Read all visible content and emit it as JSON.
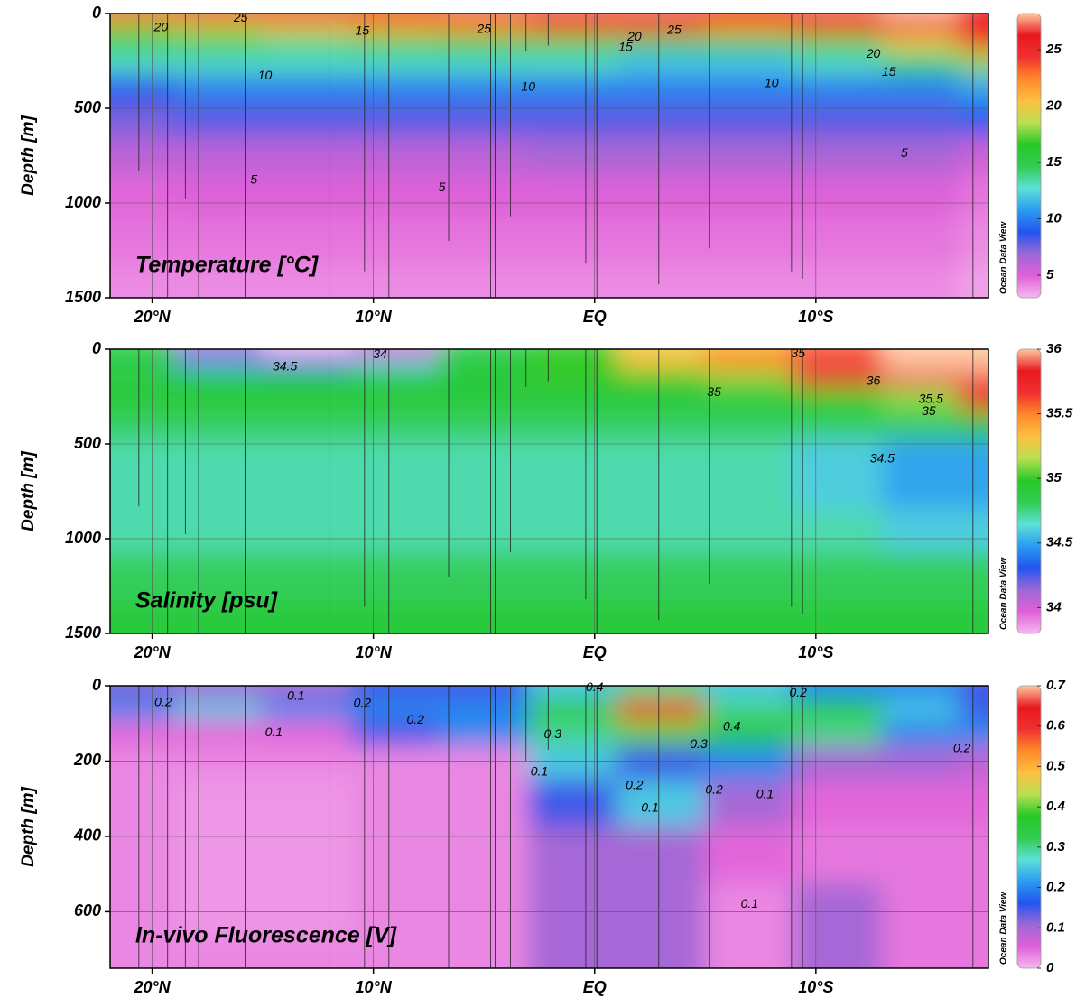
{
  "watermark": "Ocean Data View",
  "stations": [
    {
      "lat": 20.6,
      "depth": 830
    },
    {
      "lat": 19.3,
      "depth": 1500
    },
    {
      "lat": 18.5,
      "depth": 975
    },
    {
      "lat": 17.9,
      "depth": 1500
    },
    {
      "lat": 15.8,
      "depth": 1500
    },
    {
      "lat": 12.0,
      "depth": 1500
    },
    {
      "lat": 10.4,
      "depth": 1360
    },
    {
      "lat": 9.3,
      "depth": 1500
    },
    {
      "lat": 6.6,
      "depth": 1200
    },
    {
      "lat": 4.7,
      "depth": 1500
    },
    {
      "lat": 4.5,
      "depth": 1500
    },
    {
      "lat": 3.8,
      "depth": 1070
    },
    {
      "lat": 3.1,
      "depth": 200
    },
    {
      "lat": 2.1,
      "depth": 170
    },
    {
      "lat": 0.4,
      "depth": 1320
    },
    {
      "lat": -0.1,
      "depth": 1500
    },
    {
      "lat": -2.9,
      "depth": 1430
    },
    {
      "lat": -5.2,
      "depth": 1240
    },
    {
      "lat": -8.9,
      "depth": 1360
    },
    {
      "lat": -9.4,
      "depth": 1400
    },
    {
      "lat": -17.1,
      "depth": 1500
    }
  ],
  "chart_data": [
    {
      "type": "contour",
      "title": "Temperature [°C]",
      "y_label": "Depth [m]",
      "xlim": [
        21.9,
        -17.8
      ],
      "ylim": [
        0,
        1500
      ],
      "xticks": [
        {
          "value": 20,
          "label": "20°N"
        },
        {
          "value": 10,
          "label": "10°N"
        },
        {
          "value": 0,
          "label": "EQ"
        },
        {
          "value": -10,
          "label": "10°S"
        }
      ],
      "yticks": [
        0,
        500,
        1000,
        1500
      ],
      "grid": true,
      "zlim": [
        3,
        28.2
      ],
      "zticks": [
        5,
        10,
        15,
        20,
        25
      ],
      "colormap": [
        "#f6b8ee",
        "#e060d8",
        "#9c68d6",
        "#2255ee",
        "#2a9cf0",
        "#5ee0d8",
        "#30cc50",
        "#28c828",
        "#b8e050",
        "#ffc040",
        "#ff8a28",
        "#f03030",
        "#e81820",
        "#ffc8a0"
      ],
      "x": [
        21,
        17,
        13,
        9,
        5,
        1,
        -3,
        -7,
        -11,
        -15,
        -18
      ],
      "depths": [
        10,
        75,
        150,
        250,
        400,
        550,
        750,
        950,
        1200,
        1450
      ],
      "z": [
        [
          24,
          25,
          25,
          26,
          27,
          27,
          27,
          26,
          27,
          28,
          26
        ],
        [
          18,
          19,
          20,
          21,
          22,
          24,
          24,
          22,
          24,
          26,
          26
        ],
        [
          15,
          15,
          14,
          15,
          16,
          17,
          15,
          15,
          17,
          20,
          24
        ],
        [
          13,
          13,
          13,
          13,
          13,
          13,
          12,
          12,
          13,
          14,
          18
        ],
        [
          9,
          10,
          10,
          10,
          10,
          10,
          10,
          10,
          10,
          10,
          11
        ],
        [
          7.5,
          8,
          8,
          8,
          8,
          8,
          8,
          8,
          8,
          8,
          9
        ],
        [
          6,
          6,
          6,
          6,
          6,
          6.5,
          6.5,
          6.5,
          6.5,
          6.5,
          5.5
        ],
        [
          4.8,
          5,
          5,
          5,
          5,
          5,
          5,
          5,
          5,
          5,
          4.5
        ],
        [
          4.5,
          4.5,
          4.5,
          4.5,
          4.5,
          4.5,
          4.5,
          4.5,
          4.5,
          4.5,
          4
        ],
        [
          4,
          4,
          4,
          4,
          4,
          4,
          4,
          4,
          4,
          4,
          3.5
        ]
      ],
      "contour_labels": [
        {
          "value": 20,
          "lat": 19.6,
          "depth": 76
        },
        {
          "value": 25,
          "lat": 16,
          "depth": 25
        },
        {
          "value": 15,
          "lat": 10.5,
          "depth": 95
        },
        {
          "value": 25,
          "lat": 5,
          "depth": 85
        },
        {
          "value": 20,
          "lat": -1.8,
          "depth": 125
        },
        {
          "value": 15,
          "lat": -1.4,
          "depth": 180
        },
        {
          "value": 25,
          "lat": -3.6,
          "depth": 90
        },
        {
          "value": 20,
          "lat": -12.6,
          "depth": 215
        },
        {
          "value": 15,
          "lat": -13.3,
          "depth": 310
        },
        {
          "value": 10,
          "lat": 14.9,
          "depth": 330
        },
        {
          "value": 10,
          "lat": 3,
          "depth": 390
        },
        {
          "value": 10,
          "lat": -8,
          "depth": 370
        },
        {
          "value": 5,
          "lat": 15.4,
          "depth": 880
        },
        {
          "value": 5,
          "lat": 6.9,
          "depth": 920
        },
        {
          "value": 5,
          "lat": -14,
          "depth": 740
        }
      ]
    },
    {
      "type": "contour",
      "title": "Salinity [psu]",
      "y_label": "Depth [m]",
      "xlim": [
        21.9,
        -17.8
      ],
      "ylim": [
        0,
        1500
      ],
      "xticks": [
        {
          "value": 20,
          "label": "20°N"
        },
        {
          "value": 10,
          "label": "10°N"
        },
        {
          "value": 0,
          "label": "EQ"
        },
        {
          "value": -10,
          "label": "10°S"
        }
      ],
      "yticks": [
        0,
        500,
        1000,
        1500
      ],
      "grid": true,
      "zlim": [
        33.8,
        36.0
      ],
      "zticks": [
        34,
        34.5,
        35,
        35.5,
        36
      ],
      "colormap": [
        "#f6b8ee",
        "#e060d8",
        "#9c68d6",
        "#2255ee",
        "#2a9cf0",
        "#5ee0d8",
        "#30cc50",
        "#28c828",
        "#b8e050",
        "#ffc040",
        "#ff8a28",
        "#f03030",
        "#e81820",
        "#ffc8a0"
      ],
      "x": [
        21,
        17,
        13,
        9,
        5,
        1,
        -3,
        -7,
        -11,
        -15,
        -18
      ],
      "depths": [
        10,
        75,
        150,
        250,
        400,
        550,
        750,
        950,
        1200,
        1450
      ],
      "z": [
        [
          34.9,
          34.1,
          33.8,
          34.0,
          34.8,
          35.0,
          35.3,
          35.4,
          35.6,
          36.0,
          36.0
        ],
        [
          34.8,
          34.5,
          34.4,
          34.6,
          34.9,
          35.0,
          35.3,
          35.5,
          35.9,
          36.0,
          36.0
        ],
        [
          34.9,
          34.9,
          34.9,
          34.9,
          34.9,
          35.0,
          35.0,
          35.1,
          35.8,
          35.9,
          35.9
        ],
        [
          34.9,
          34.9,
          34.9,
          34.9,
          34.9,
          34.9,
          34.9,
          34.9,
          35.0,
          35.1,
          35.7
        ],
        [
          34.8,
          34.8,
          34.8,
          34.8,
          34.8,
          34.8,
          34.8,
          34.8,
          34.8,
          34.8,
          34.9
        ],
        [
          34.7,
          34.7,
          34.7,
          34.7,
          34.7,
          34.7,
          34.7,
          34.7,
          34.6,
          34.5,
          34.5
        ],
        [
          34.7,
          34.7,
          34.7,
          34.7,
          34.7,
          34.7,
          34.7,
          34.7,
          34.6,
          34.5,
          34.5
        ],
        [
          34.7,
          34.7,
          34.7,
          34.7,
          34.7,
          34.7,
          34.7,
          34.7,
          34.7,
          34.6,
          34.6
        ],
        [
          34.8,
          34.8,
          34.8,
          34.8,
          34.8,
          34.8,
          34.8,
          34.8,
          34.8,
          34.8,
          34.8
        ],
        [
          34.9,
          34.9,
          34.9,
          34.9,
          34.9,
          34.9,
          34.9,
          34.9,
          34.9,
          34.9,
          34.9
        ]
      ],
      "contour_labels": [
        {
          "value": 34.5,
          "lat": 14,
          "depth": 95
        },
        {
          "value": 34,
          "lat": 9.7,
          "depth": 30
        },
        {
          "value": 35,
          "lat": -5.4,
          "depth": 230
        },
        {
          "value": 36,
          "lat": -12.6,
          "depth": 170
        },
        {
          "value": 35.5,
          "lat": -15.2,
          "depth": 265
        },
        {
          "value": 35,
          "lat": -15.1,
          "depth": 330
        },
        {
          "value": 34.5,
          "lat": -13,
          "depth": 580
        },
        {
          "value": 35,
          "lat": -9.2,
          "depth": 25
        }
      ]
    },
    {
      "type": "contour",
      "title": "In-vivo Fluorescence [V]",
      "y_label": "Depth [m]",
      "xlim": [
        21.9,
        -17.8
      ],
      "ylim": [
        0,
        750
      ],
      "xticks": [
        {
          "value": 20,
          "label": "20°N"
        },
        {
          "value": 10,
          "label": "10°N"
        },
        {
          "value": 0,
          "label": "EQ"
        },
        {
          "value": -10,
          "label": "10°S"
        }
      ],
      "yticks": [
        0,
        200,
        400,
        600
      ],
      "grid": true,
      "zlim": [
        0,
        0.7
      ],
      "zticks": [
        0,
        0.1,
        0.2,
        0.3,
        0.4,
        0.5,
        0.6,
        0.7
      ],
      "colormap": [
        "#f6b8ee",
        "#e060d8",
        "#9c68d6",
        "#2255ee",
        "#2a9cf0",
        "#5ee0d8",
        "#30cc50",
        "#28c828",
        "#b8e050",
        "#ffc040",
        "#ff8a28",
        "#f03030",
        "#e81820",
        "#ffc8a0"
      ],
      "x": [
        21,
        17,
        13,
        9,
        5,
        1,
        -3,
        -7,
        -11,
        -15,
        -18
      ],
      "depths": [
        10,
        60,
        120,
        200,
        300,
        450,
        600,
        720
      ],
      "z": [
        [
          0.12,
          0.1,
          0.1,
          0.15,
          0.15,
          0.25,
          0.3,
          0.25,
          0.2,
          0.2,
          0.15
        ],
        [
          0.2,
          0.25,
          0.2,
          0.2,
          0.2,
          0.35,
          0.6,
          0.3,
          0.35,
          0.25,
          0.15
        ],
        [
          0.05,
          0.05,
          0.05,
          0.15,
          0.2,
          0.3,
          0.4,
          0.35,
          0.3,
          0.2,
          0.2
        ],
        [
          0.03,
          0.03,
          0.03,
          0.03,
          0.03,
          0.25,
          0.15,
          0.2,
          0.1,
          0.1,
          0.08
        ],
        [
          0.03,
          0.02,
          0.02,
          0.03,
          0.03,
          0.15,
          0.25,
          0.1,
          0.05,
          0.05,
          0.05
        ],
        [
          0.03,
          0.02,
          0.02,
          0.03,
          0.03,
          0.1,
          0.1,
          0.05,
          0.04,
          0.04,
          0.04
        ],
        [
          0.03,
          0.02,
          0.02,
          0.03,
          0.03,
          0.1,
          0.1,
          0.03,
          0.1,
          0.04,
          0.04
        ],
        [
          0.03,
          0.03,
          0.03,
          0.03,
          0.03,
          0.1,
          0.1,
          0.03,
          0.1,
          0.04,
          0.04
        ]
      ],
      "contour_labels": [
        {
          "value": 0.2,
          "lat": 19.5,
          "depth": 45
        },
        {
          "value": 0.1,
          "lat": 13.5,
          "depth": 28
        },
        {
          "value": 0.2,
          "lat": 10.5,
          "depth": 48
        },
        {
          "value": 0.1,
          "lat": 14.5,
          "depth": 125
        },
        {
          "value": 0.2,
          "lat": 8.1,
          "depth": 92
        },
        {
          "value": 0.4,
          "lat": 0,
          "depth": 5
        },
        {
          "value": 0.3,
          "lat": 1.9,
          "depth": 130
        },
        {
          "value": 0.1,
          "lat": 2.5,
          "depth": 230
        },
        {
          "value": 0.2,
          "lat": -1.8,
          "depth": 265
        },
        {
          "value": 0.1,
          "lat": -2.5,
          "depth": 325
        },
        {
          "value": 0.4,
          "lat": -6.2,
          "depth": 110
        },
        {
          "value": 0.3,
          "lat": -4.7,
          "depth": 157
        },
        {
          "value": 0.2,
          "lat": -5.4,
          "depth": 277
        },
        {
          "value": 0.1,
          "lat": -7.7,
          "depth": 290
        },
        {
          "value": 0.2,
          "lat": -9.2,
          "depth": 20
        },
        {
          "value": 0.2,
          "lat": -16.6,
          "depth": 167
        },
        {
          "value": 0.1,
          "lat": -7,
          "depth": 580
        }
      ]
    }
  ]
}
